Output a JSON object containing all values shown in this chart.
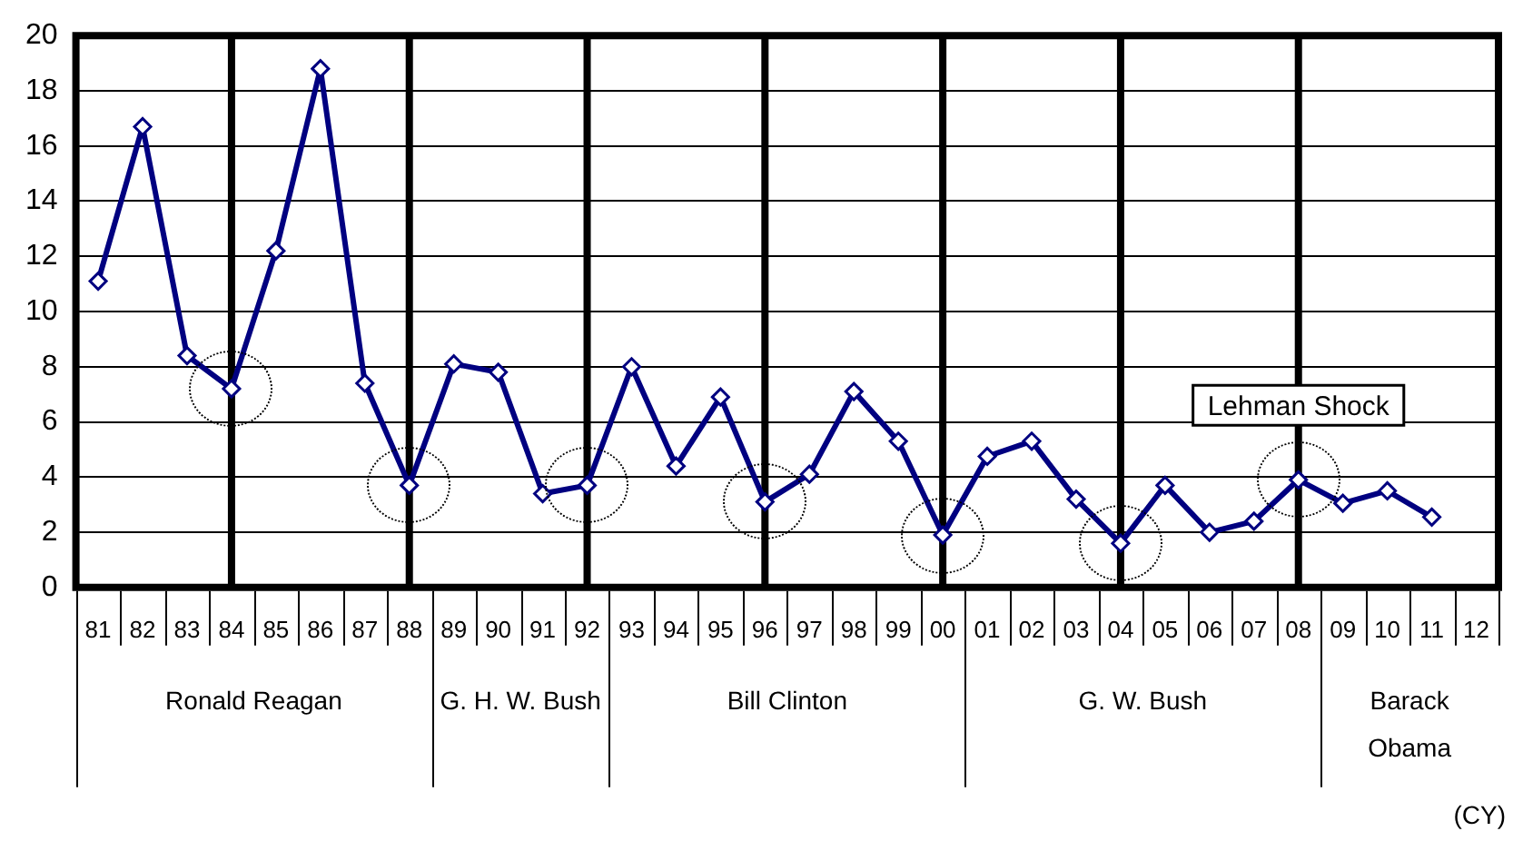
{
  "chart_data": {
    "type": "line",
    "categories": [
      "81",
      "82",
      "83",
      "84",
      "85",
      "86",
      "87",
      "88",
      "89",
      "90",
      "91",
      "92",
      "93",
      "94",
      "95",
      "96",
      "97",
      "98",
      "99",
      "00",
      "01",
      "02",
      "03",
      "04",
      "05",
      "06",
      "07",
      "08",
      "09",
      "10",
      "11",
      "12"
    ],
    "series": [
      {
        "color": "#000080",
        "values": [
          11.1,
          16.7,
          8.4,
          7.2,
          12.2,
          18.8,
          7.4,
          3.7,
          8.1,
          7.8,
          3.4,
          3.7,
          8.0,
          4.4,
          6.9,
          3.1,
          4.1,
          7.1,
          5.3,
          1.9,
          4.75,
          5.3,
          3.2,
          1.6,
          3.7,
          2.0,
          2.4,
          3.9,
          3.05,
          3.5,
          2.55,
          null
        ]
      }
    ],
    "ylim": [
      0,
      20
    ],
    "yticks": [
      0,
      2,
      4,
      6,
      8,
      10,
      12,
      14,
      16,
      18,
      20
    ],
    "grid": "y",
    "marker": "diamond",
    "line_style": "solid",
    "legend": false,
    "ref_lines": [
      {
        "axis": "x",
        "value": "84",
        "color": "#000000"
      },
      {
        "axis": "x",
        "value": "88",
        "color": "#000000"
      },
      {
        "axis": "x",
        "value": "92",
        "color": "#000000"
      },
      {
        "axis": "x",
        "value": "96",
        "color": "#000000"
      },
      {
        "axis": "x",
        "value": "00",
        "color": "#000000"
      },
      {
        "axis": "x",
        "value": "04",
        "color": "#000000"
      },
      {
        "axis": "x",
        "value": "08",
        "color": "#000000"
      }
    ],
    "annotations": [
      {
        "text": "Lehman Shock",
        "x": "08",
        "y": 6.6
      },
      "Ronald Reagan",
      "G. H. W. Bush",
      "Bill Clinton",
      "G. W. Bush",
      "Barack Obama",
      "(CY)"
    ]
  }
}
